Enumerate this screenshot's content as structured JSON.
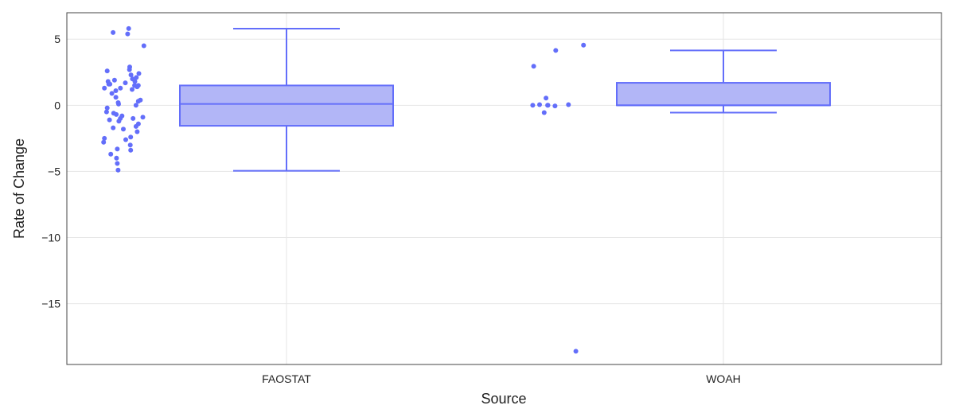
{
  "chart_data": {
    "type": "box",
    "title": "",
    "xlabel": "Source",
    "ylabel": "Rate of Change",
    "ylim": [
      -19.6,
      7.0
    ],
    "y_ticks": [
      5,
      0,
      -5,
      -10,
      -15
    ],
    "y_tick_labels": [
      "5",
      "0",
      "−5",
      "−10",
      "−15"
    ],
    "grid": true,
    "categories": [
      "FAOSTAT",
      "WOAH"
    ],
    "boxes": [
      {
        "category": "FAOSTAT",
        "min": -4.95,
        "q1": -1.55,
        "median": 0.1,
        "q3": 1.5,
        "max": 5.8
      },
      {
        "category": "WOAH",
        "min": -0.55,
        "q1": 0.0,
        "median": 0.0,
        "q3": 1.7,
        "max": 4.15
      }
    ],
    "points": {
      "FAOSTAT": [
        5.8,
        5.5,
        5.4,
        4.5,
        2.9,
        2.7,
        2.6,
        2.4,
        2.3,
        2.1,
        2.0,
        1.9,
        1.8,
        1.8,
        1.7,
        1.6,
        1.6,
        1.5,
        1.5,
        1.4,
        1.3,
        1.3,
        1.2,
        1.1,
        0.9,
        0.6,
        0.4,
        0.3,
        0.2,
        0.1,
        0.0,
        -0.2,
        -0.5,
        -0.6,
        -0.7,
        -0.8,
        -0.9,
        -1.0,
        -1.0,
        -1.1,
        -1.2,
        -1.4,
        -1.6,
        -1.7,
        -1.8,
        -2.0,
        -2.4,
        -2.5,
        -2.6,
        -2.8,
        -3.0,
        -3.3,
        -3.4,
        -3.7,
        -4.0,
        -4.4,
        -4.9
      ],
      "WOAH": [
        4.55,
        4.15,
        2.95,
        0.55,
        0.05,
        0.05,
        0.0,
        0.0,
        0.0,
        -0.05,
        -0.55,
        -18.6
      ]
    },
    "colors": {
      "box_fill": "#b2b6f7",
      "box_line": "#636efa",
      "point": "#636efa",
      "grid": "#e6e6e6",
      "frame": "#444444"
    }
  }
}
